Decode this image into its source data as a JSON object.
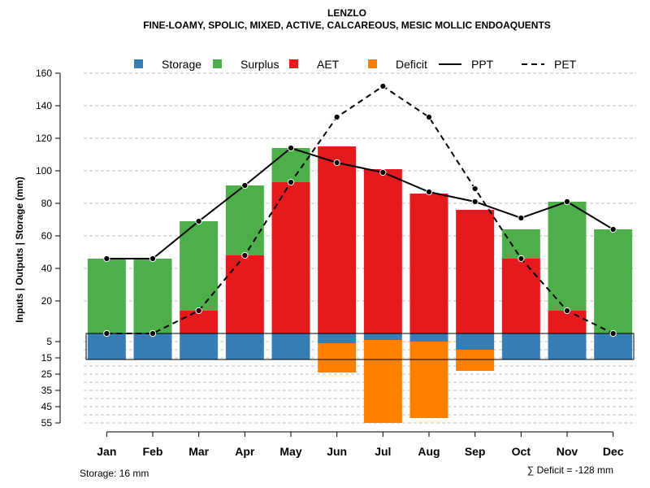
{
  "chart_data": {
    "type": "bar",
    "title": "LENZLO",
    "subtitle": "FINE-LOAMY, SPOLIC, MIXED, ACTIVE, CALCAREOUS, MESIC MOLLIC ENDOAQUENTS",
    "ylabel": "Inputs | Outputs | Storage    (mm)",
    "categories": [
      "Jan",
      "Feb",
      "Mar",
      "Apr",
      "May",
      "Jun",
      "Jul",
      "Aug",
      "Sep",
      "Oct",
      "Nov",
      "Dec"
    ],
    "upper_ticks": [
      "20",
      "40",
      "60",
      "80",
      "100",
      "120",
      "140",
      "160"
    ],
    "lower_ticks": [
      "5",
      "15",
      "25",
      "35",
      "45",
      "55"
    ],
    "ylim_upper": [
      0,
      160
    ],
    "ylim_lower": [
      0,
      55
    ],
    "legend": [
      {
        "label": "Storage",
        "kind": "box",
        "color": "#377EB8"
      },
      {
        "label": "Surplus",
        "kind": "box",
        "color": "#4DAF4A"
      },
      {
        "label": "AET",
        "kind": "box",
        "color": "#E41A1C"
      },
      {
        "label": "Deficit",
        "kind": "box",
        "color": "#FF7F00"
      },
      {
        "label": "PPT",
        "kind": "solid",
        "color": "#000000"
      },
      {
        "label": "PET",
        "kind": "dashed",
        "color": "#000000"
      }
    ],
    "series": [
      {
        "name": "AET",
        "color": "#E41A1C",
        "values": [
          0,
          0,
          14,
          48,
          93,
          115,
          101,
          86,
          76,
          46,
          14,
          0
        ]
      },
      {
        "name": "Surplus",
        "color": "#4DAF4A",
        "values": [
          46,
          46,
          55,
          43,
          21,
          0,
          0,
          0,
          0,
          18,
          67,
          64
        ]
      },
      {
        "name": "Storage",
        "color": "#377EB8",
        "values": [
          16,
          16,
          16,
          16,
          16,
          6,
          4,
          5,
          10,
          16,
          16,
          16
        ]
      },
      {
        "name": "Deficit",
        "color": "#FF7F00",
        "values": [
          0,
          0,
          0,
          0,
          0,
          18,
          51,
          47,
          13,
          0,
          0,
          0
        ]
      },
      {
        "name": "PPT",
        "color": "#000000",
        "values": [
          46,
          46,
          69,
          91,
          114,
          105,
          99,
          87,
          81,
          71,
          81,
          64
        ]
      },
      {
        "name": "PET",
        "color": "#000000",
        "values": [
          0,
          0,
          14,
          48,
          93,
          133,
          152,
          133,
          89,
          46,
          14,
          0
        ]
      }
    ],
    "storage_capacity": 16,
    "storage_note": "Storage: 16 mm",
    "deficit_note": "∑ Deficit = -128 mm"
  }
}
